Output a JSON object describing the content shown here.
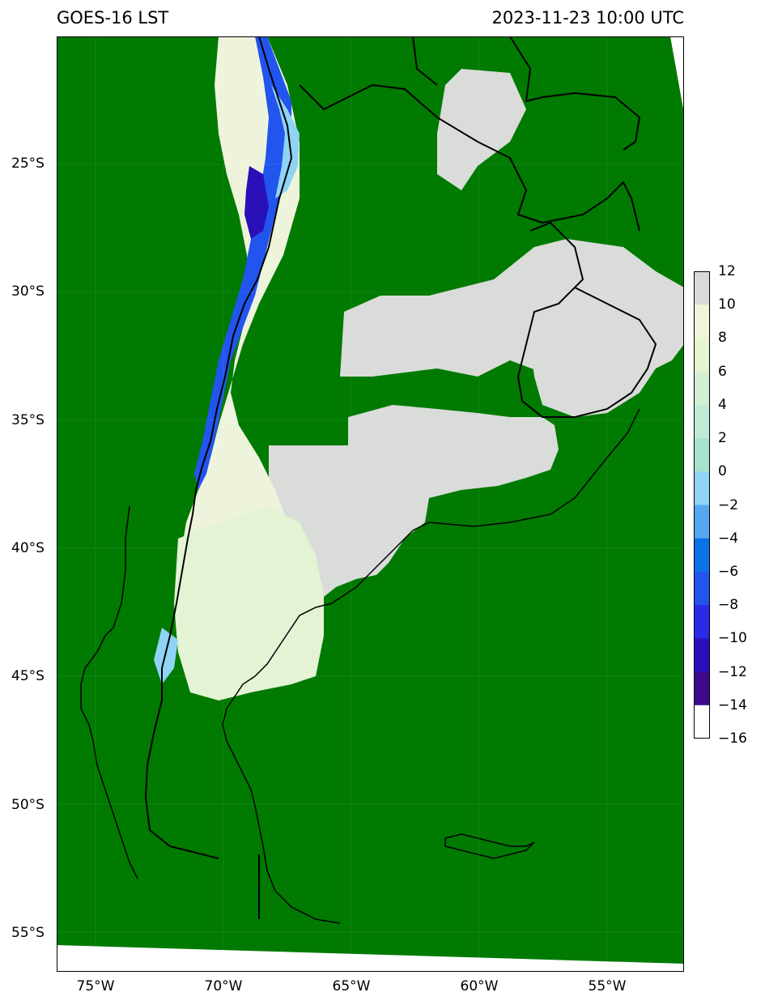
{
  "title_left": "GOES-16 LST",
  "title_right": "2023-11-23 10:00 UTC",
  "colors": {
    "land_background": "#007a00",
    "warm_region": "#d9dcd9",
    "cold_blue": "#2255ee",
    "cold_deep": "#2a1fbf",
    "light_green": "#c8ebc8",
    "pale_yellow": "#f0f5d8",
    "frame": "#000000"
  },
  "latitude_labels": [
    "25°S",
    "30°S",
    "35°S",
    "40°S",
    "45°S",
    "50°S",
    "55°S"
  ],
  "longitude_labels": [
    "75°W",
    "70°W",
    "65°W",
    "60°W",
    "55°W"
  ],
  "colorbar": {
    "ticks": [
      "12",
      "10",
      "8",
      "6",
      "4",
      "2",
      "0",
      "−2",
      "−4",
      "−6",
      "−8",
      "−10",
      "−12",
      "−14",
      "−16"
    ],
    "colors_top_to_bottom": [
      "#d9d9d9",
      "#f0f5d8",
      "#e6f5cf",
      "#d3efd3",
      "#c1ead6",
      "#a6e3cf",
      "#8fd3f5",
      "#55a8f0",
      "#0a72e8",
      "#2255ee",
      "#2a2ae8",
      "#2a10b8",
      "#3d0a8c",
      "#ffffff"
    ]
  }
}
